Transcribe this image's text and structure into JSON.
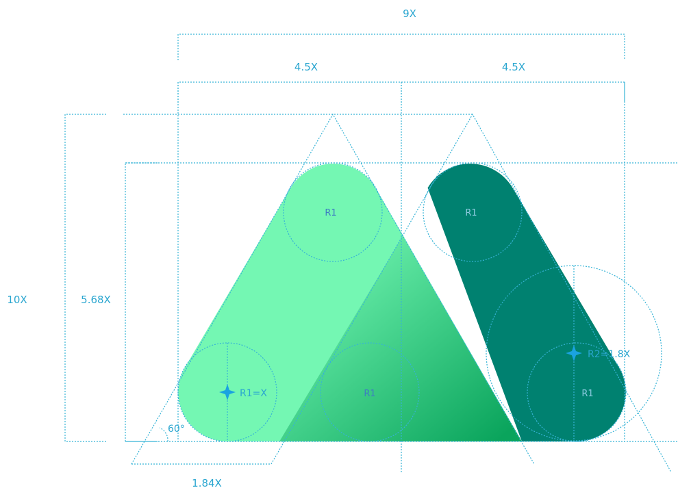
{
  "colors": {
    "light_shape": "#74f7b3",
    "dark_shape": "#008170",
    "gradient_start": "#74f7b3",
    "gradient_end": "#0aa45c",
    "guide": "#36b3d6",
    "label": "#2aa6d0"
  },
  "dimensions": {
    "total_width": "9X",
    "half_left": "4.5X",
    "half_right": "4.5X",
    "total_height": "10X",
    "shape_height": "5.68X",
    "base_offset": "1.84X",
    "angle": "60°"
  },
  "labels": {
    "r1_left_top": "R1",
    "r1_right_top": "R1",
    "r1_left_bottom_formula": "R1=X",
    "r1_center_bottom": "R1",
    "r1_right_bottom": "R1",
    "r2_formula": "R2=1.8X"
  },
  "icons": {
    "center_marker_1": "four-point-star-icon",
    "center_marker_2": "four-point-star-icon"
  }
}
